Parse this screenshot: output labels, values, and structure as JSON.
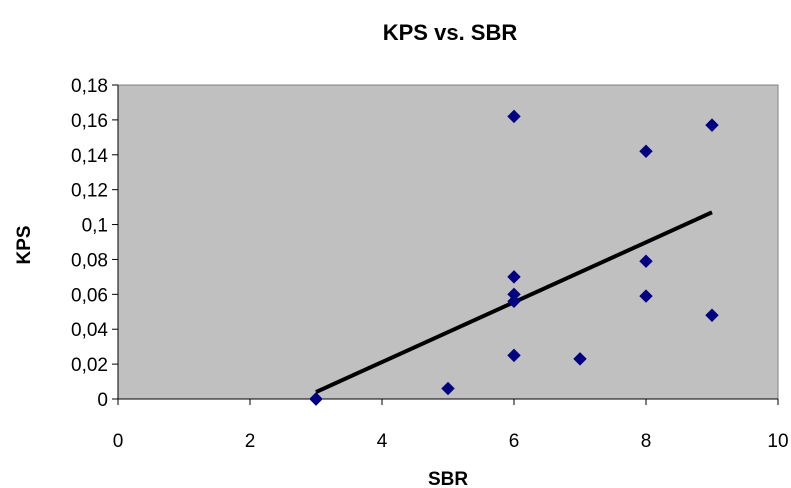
{
  "chart_data": {
    "type": "scatter",
    "title": "KPS vs. SBR",
    "xlabel": "SBR",
    "ylabel": "KPS",
    "xlim": [
      0,
      10
    ],
    "ylim": [
      0,
      0.18
    ],
    "x_ticks": [
      "0",
      "2",
      "4",
      "6",
      "8",
      "10"
    ],
    "y_ticks": [
      "0",
      "0,02",
      "0,04",
      "0,06",
      "0,08",
      "0,1",
      "0,12",
      "0,14",
      "0,16",
      "0,18"
    ],
    "grid": false,
    "legend": "none",
    "plot_background": "#c0c0c0",
    "marker_color": "#000080",
    "marker_shape": "diamond",
    "trendline_color": "#000000",
    "series": [
      {
        "points": [
          {
            "x": 3,
            "y": 0.0
          },
          {
            "x": 3,
            "y": 0.0
          },
          {
            "x": 5,
            "y": 0.006
          },
          {
            "x": 6,
            "y": 0.162
          },
          {
            "x": 6,
            "y": 0.07
          },
          {
            "x": 6,
            "y": 0.06
          },
          {
            "x": 6,
            "y": 0.056
          },
          {
            "x": 6,
            "y": 0.025
          },
          {
            "x": 7,
            "y": 0.023
          },
          {
            "x": 8,
            "y": 0.142
          },
          {
            "x": 8,
            "y": 0.079
          },
          {
            "x": 8,
            "y": 0.059
          },
          {
            "x": 9,
            "y": 0.157
          },
          {
            "x": 9,
            "y": 0.048
          }
        ]
      }
    ],
    "trendline": {
      "type": "linear",
      "x": [
        3,
        9
      ],
      "y": [
        0.004,
        0.107
      ]
    }
  }
}
